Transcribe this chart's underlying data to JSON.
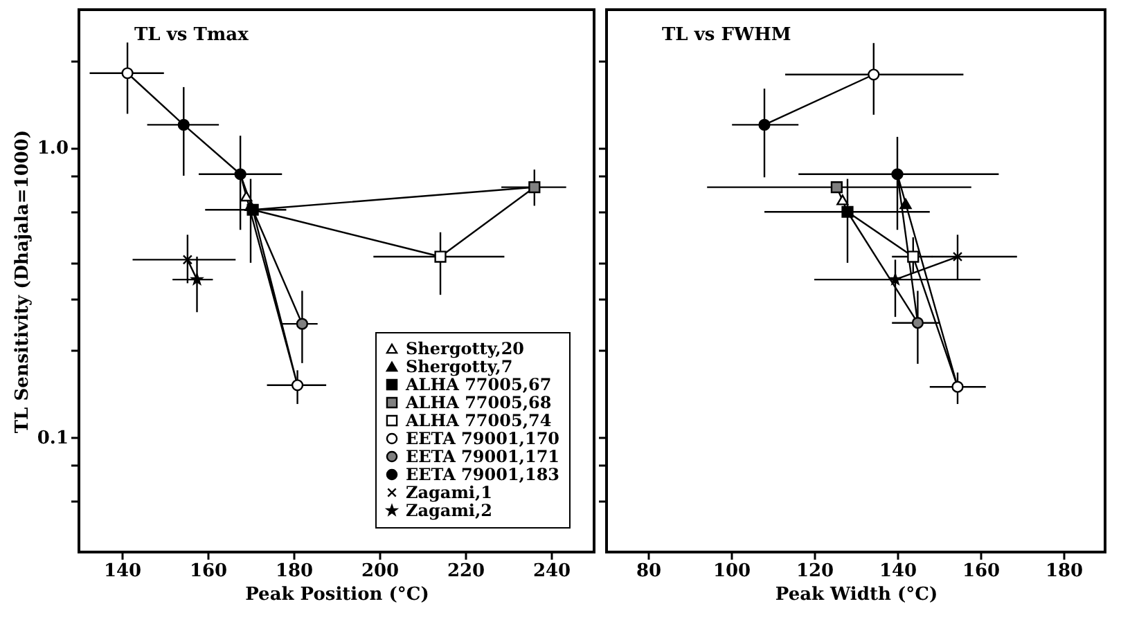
{
  "chart_data": [
    {
      "type": "scatter",
      "title": "TL vs Tmax",
      "xlabel": "Peak Position (°C)",
      "ylabel": "TL Sensitivity (Dhajala=1000)",
      "log": "y",
      "legend": "bottom right",
      "xlim": [
        130,
        250
      ],
      "xticks": [
        140,
        160,
        180,
        200,
        220,
        240
      ],
      "ylim": [
        0.04,
        3
      ],
      "yticks": [
        {
          "value": 2,
          "label": null
        },
        {
          "value": 1,
          "label": "1.0"
        },
        {
          "value": 0.8,
          "label": null
        },
        {
          "value": 0.6,
          "label": null
        },
        {
          "value": 0.4,
          "label": null
        },
        {
          "value": 0.3,
          "label": null
        },
        {
          "value": 0.2,
          "label": null
        },
        0.1,
        {
          "value": 0.08,
          "label": null
        },
        {
          "value": 0.06,
          "label": null
        }
      ],
      "series": [
        {
          "name": "Shergotty,20",
          "marker": "triangle",
          "color": "#ffffff",
          "x": [
            169
          ],
          "values": [
            0.68
          ]
        },
        {
          "name": "Shergotty,7",
          "marker": "triangle",
          "color": "#000000",
          "x": [
            170
          ],
          "values": [
            0.63
          ],
          "errors": [
            [
              0.4,
              0.78
            ]
          ]
        },
        {
          "name": "ALHA 77005,67",
          "marker": "square",
          "color": "#000000",
          "x": [
            170.5
          ],
          "values": [
            0.61
          ],
          "xerrors": [
            [
              159.4,
              178.3
            ]
          ]
        },
        {
          "name": "ALHA 77005,68",
          "marker": "square",
          "color": "#808080",
          "x": [
            236.1
          ],
          "values": [
            0.73
          ],
          "errors": [
            [
              0.63,
              0.84
            ]
          ],
          "xerrors": [
            [
              228.4,
              243.5
            ]
          ]
        },
        {
          "name": "ALHA 77005,74",
          "marker": "square",
          "color": "#ffffff",
          "x": [
            214.2
          ],
          "values": [
            0.42
          ],
          "errors": [
            [
              0.31,
              0.51
            ]
          ],
          "xerrors": [
            [
              198.6,
              229.1
            ]
          ]
        },
        {
          "name": "EETA 79001,170",
          "marker": "circle",
          "color": "#ffffff",
          "x": [
            141.3,
            180.9
          ],
          "values": [
            1.81,
            0.151
          ],
          "errors": [
            [
              1.31,
              2.31
            ],
            [
              0.13,
              0.17
            ]
          ],
          "xerrors": [
            [
              132.5,
              149.8
            ],
            [
              173.8,
              187.6
            ]
          ]
        },
        {
          "name": "EETA 79001,171",
          "marker": "circle",
          "color": "#808080",
          "x": [
            182
          ],
          "values": [
            0.246
          ],
          "errors": [
            [
              0.18,
              0.32
            ]
          ],
          "xerrors": [
            [
              177.1,
              185.6
            ]
          ]
        },
        {
          "name": "EETA 79001,183",
          "marker": "circle",
          "color": "#000000",
          "x": [
            154.4,
            167.6
          ],
          "values": [
            1.2,
            0.81
          ],
          "errors": [
            [
              0.8,
              1.62
            ],
            [
              0.52,
              1.1
            ]
          ],
          "xerrors": [
            [
              145.9,
              162.6
            ],
            [
              157.9,
              177.3
            ]
          ]
        },
        {
          "name": "Zagami,1",
          "marker": "cross",
          "color": "#000000",
          "x": [
            155.3
          ],
          "values": [
            0.41
          ],
          "errors": [
            [
              0.34,
              0.5
            ]
          ],
          "xerrors": [
            [
              142.5,
              166.5
            ]
          ]
        },
        {
          "name": "Zagami,2",
          "marker": "star",
          "color": "#000000",
          "x": [
            157.5
          ],
          "values": [
            0.35
          ],
          "errors": [
            [
              0.27,
              0.42
            ]
          ],
          "xerrors": [
            [
              151.8,
              161.2
            ]
          ]
        },
        {
          "type": "line",
          "color": "#000000",
          "x": [
            141.3,
            154.4,
            167.6,
            170.5,
            236.1,
            214.2,
            170.5
          ],
          "values": [
            1.81,
            1.2,
            0.81,
            0.61,
            0.73,
            0.42,
            0.61
          ]
        },
        {
          "type": "line",
          "color": "#000000",
          "x": [
            167.6,
            180.9,
            170.5,
            182
          ],
          "values": [
            0.81,
            0.151,
            0.61,
            0.246
          ]
        },
        {
          "type": "line",
          "color": "#000000",
          "x": [
            155.3,
            157.5
          ],
          "values": [
            0.41,
            0.35
          ]
        }
      ]
    },
    {
      "type": "scatter",
      "title": "TL vs FWHM",
      "xlabel": "Peak Width (°C)",
      "log": "y",
      "tick_labels": "x",
      "xlim": [
        70,
        190
      ],
      "xticks": [
        80,
        100,
        120,
        140,
        160,
        180
      ],
      "ylim": [
        0.04,
        3
      ],
      "yticks": [
        {
          "value": 2,
          "label": null
        },
        {
          "value": 1,
          "label": null
        },
        {
          "value": 0.8,
          "label": null
        },
        {
          "value": 0.6,
          "label": null
        },
        {
          "value": 0.4,
          "label": null
        },
        {
          "value": 0.3,
          "label": null
        },
        {
          "value": 0.2,
          "label": null
        },
        {
          "value": 0.1,
          "label": null
        },
        {
          "value": 0.08,
          "label": null
        },
        {
          "value": 0.06,
          "label": null
        }
      ],
      "series": [
        {
          "marker": "triangle",
          "color": "#ffffff",
          "x": [
            126.8
          ],
          "values": [
            0.66
          ]
        },
        {
          "marker": "triangle",
          "color": "#000000",
          "x": [
            142
          ],
          "values": [
            0.64
          ]
        },
        {
          "marker": "square",
          "color": "#000000",
          "x": [
            128
          ],
          "values": [
            0.6
          ],
          "errors": [
            [
              0.4,
              0.78
            ]
          ],
          "xerrors": [
            [
              108,
              147.8
            ]
          ]
        },
        {
          "marker": "square",
          "color": "#808080",
          "x": [
            125.4
          ],
          "values": [
            0.73
          ],
          "xerrors": [
            [
              94.2,
              157.8
            ]
          ]
        },
        {
          "marker": "square",
          "color": "#ffffff",
          "x": [
            143.8
          ],
          "values": [
            0.42
          ],
          "errors": [
            [
              0.37,
              0.49
            ]
          ],
          "xerrors": [
            [
              138.7,
              148.4
            ]
          ]
        },
        {
          "marker": "circle",
          "color": "#ffffff",
          "x": [
            134.3,
            154.5
          ],
          "values": [
            1.79,
            0.149
          ],
          "errors": [
            [
              1.3,
              2.3
            ],
            [
              0.13,
              0.167
            ]
          ],
          "xerrors": [
            [
              113,
              155.9
            ],
            [
              147.8,
              161.3
            ]
          ]
        },
        {
          "marker": "circle",
          "color": "#808080",
          "x": [
            144.9
          ],
          "values": [
            0.248
          ],
          "errors": [
            [
              0.179,
              0.32
            ]
          ],
          "xerrors": [
            [
              138.7,
              150.2
            ]
          ]
        },
        {
          "marker": "circle",
          "color": "#000000",
          "x": [
            108,
            140
          ],
          "values": [
            1.2,
            0.81
          ],
          "errors": [
            [
              0.79,
              1.6
            ],
            [
              0.52,
              1.09
            ]
          ],
          "xerrors": [
            [
              100.2,
              116.2
            ],
            [
              116.2,
              164.4
            ]
          ]
        },
        {
          "marker": "cross",
          "color": "#000000",
          "x": [
            154.5
          ],
          "values": [
            0.42
          ],
          "errors": [
            [
              0.35,
              0.5
            ]
          ],
          "xerrors": [
            [
              148.3,
              168.8
            ]
          ]
        },
        {
          "marker": "star",
          "color": "#000000",
          "x": [
            139.5
          ],
          "values": [
            0.35
          ],
          "errors": [
            [
              0.26,
              0.41
            ]
          ],
          "xerrors": [
            [
              120,
              160
            ]
          ]
        },
        {
          "type": "line",
          "color": "#000000",
          "x": [
            108,
            134.3
          ],
          "values": [
            1.2,
            1.79
          ]
        },
        {
          "type": "line",
          "color": "#000000",
          "x": [
            125.4,
            128,
            143.8,
            154.5,
            140,
            144.9,
            128
          ],
          "values": [
            0.73,
            0.6,
            0.42,
            0.149,
            0.81,
            0.248,
            0.6
          ]
        },
        {
          "type": "line",
          "color": "#000000",
          "x": [
            139.5,
            154.5
          ],
          "values": [
            0.35,
            0.42
          ]
        }
      ]
    }
  ]
}
